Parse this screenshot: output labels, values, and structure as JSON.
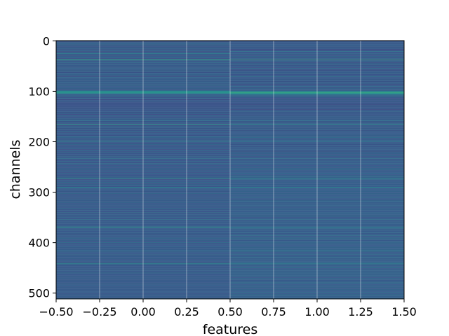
{
  "chart_data": {
    "type": "heatmap",
    "title": "",
    "xlabel": "features",
    "ylabel": "channels",
    "xlim": [
      -0.5,
      1.5
    ],
    "ylim": [
      511.5,
      -0.5
    ],
    "x_tick_labels": [
      "−0.50",
      "−0.25",
      "0.00",
      "0.25",
      "0.50",
      "0.75",
      "1.00",
      "1.25",
      "1.50"
    ],
    "x_tick_values": [
      -0.5,
      -0.25,
      0,
      0.25,
      0.5,
      0.75,
      1.0,
      1.25,
      1.5
    ],
    "y_tick_labels": [
      "0",
      "100",
      "200",
      "300",
      "400",
      "500"
    ],
    "y_tick_values": [
      0,
      100,
      200,
      300,
      400,
      500
    ],
    "columns": 2,
    "rows": 512,
    "grid": true,
    "colormap": "viridis",
    "value_range": [
      0,
      1
    ],
    "row_values_col0": [
      0.22,
      0.35,
      0.18,
      0.3,
      0.28,
      0.41,
      0.25,
      0.33,
      0.2,
      0.38,
      0.27,
      0.31,
      0.19,
      0.36,
      0.24,
      0.29,
      0.34,
      0.22,
      0.4,
      0.26,
      0.31,
      0.21,
      0.37,
      0.28,
      0.23,
      0.42,
      0.3,
      0.25,
      0.33,
      0.2,
      0.35,
      0.27,
      0.24,
      0.39,
      0.29,
      0.22,
      0.36,
      0.31,
      0.58,
      0.3,
      0.26,
      0.34,
      0.21,
      0.38,
      0.28,
      0.25,
      0.4,
      0.23,
      0.32,
      0.27,
      0.36,
      0.2,
      0.33,
      0.29,
      0.24,
      0.41,
      0.26,
      0.31,
      0.22,
      0.37,
      0.28,
      0.34,
      0.19,
      0.3,
      0.25,
      0.39,
      0.27,
      0.32,
      0.23,
      0.36,
      0.29,
      0.21,
      0.35,
      0.26,
      0.4,
      0.24,
      0.31,
      0.28,
      0.33,
      0.22,
      0.37,
      0.25,
      0.3,
      0.27,
      0.42,
      0.23,
      0.34,
      0.29,
      0.2,
      0.38,
      0.26,
      0.32,
      0.24,
      0.36,
      0.28,
      0.31,
      0.22,
      0.35,
      0.27,
      0.39,
      0.45,
      0.5,
      0.47,
      0.52,
      0.44,
      0.41,
      0.3,
      0.25,
      0.33,
      0.28,
      0.36,
      0.22,
      0.3,
      0.26,
      0.34,
      0.24,
      0.29,
      0.21,
      0.27,
      0.32,
      0.25,
      0.28,
      0.23,
      0.31,
      0.26,
      0.2,
      0.29,
      0.24,
      0.27,
      0.22,
      0.3,
      0.25,
      0.28,
      0.19,
      0.33,
      0.26,
      0.29,
      0.23,
      0.31,
      0.24,
      0.27,
      0.35,
      0.22,
      0.3,
      0.26,
      0.33,
      0.21,
      0.29,
      0.25,
      0.37,
      0.28,
      0.23,
      0.31,
      0.26,
      0.34,
      0.22,
      0.3,
      0.48,
      0.27,
      0.32,
      0.24,
      0.29,
      0.26,
      0.35,
      0.23,
      0.55,
      0.28,
      0.31,
      0.22,
      0.34,
      0.27,
      0.3,
      0.25,
      0.38,
      0.21,
      0.29,
      0.26,
      0.33,
      0.24,
      0.31,
      0.28,
      0.36,
      0.22,
      0.3,
      0.27,
      0.35,
      0.25,
      0.29,
      0.23,
      0.32,
      0.28,
      0.4,
      0.26,
      0.3,
      0.22,
      0.34,
      0.27,
      0.31,
      0.24,
      0.52,
      0.29,
      0.25,
      0.33,
      0.21,
      0.3,
      0.28,
      0.36,
      0.23,
      0.31,
      0.26,
      0.29,
      0.24,
      0.35,
      0.27,
      0.32,
      0.22,
      0.3,
      0.25,
      0.38,
      0.28,
      0.23,
      0.34,
      0.26,
      0.31,
      0.24,
      0.29,
      0.27,
      0.36,
      0.22,
      0.33,
      0.25,
      0.3,
      0.28,
      0.41,
      0.23,
      0.32,
      0.26,
      0.29,
      0.24,
      0.35,
      0.27,
      0.31,
      0.22,
      0.34,
      0.29,
      0.25,
      0.37,
      0.23,
      0.3,
      0.27,
      0.33,
      0.24,
      0.28,
      0.31,
      0.26,
      0.39,
      0.22,
      0.3,
      0.25,
      0.34,
      0.28,
      0.23,
      0.32,
      0.26,
      0.36,
      0.24,
      0.29,
      0.27,
      0.31,
      0.22,
      0.35,
      0.28,
      0.54,
      0.25,
      0.3,
      0.23,
      0.33,
      0.27,
      0.29,
      0.24,
      0.38,
      0.26,
      0.31,
      0.22,
      0.34,
      0.28,
      0.3,
      0.25,
      0.36,
      0.23,
      0.32,
      0.5,
      0.27,
      0.29,
      0.24,
      0.35,
      0.26,
      0.31,
      0.22,
      0.33,
      0.28,
      0.3,
      0.25,
      0.37,
      0.23,
      0.32,
      0.27,
      0.29,
      0.24,
      0.34,
      0.26,
      0.31,
      0.22,
      0.36,
      0.28,
      0.3,
      0.25,
      0.33,
      0.23,
      0.39,
      0.27,
      0.31,
      0.24,
      0.35,
      0.29,
      0.26,
      0.32,
      0.22,
      0.34,
      0.28,
      0.3,
      0.25,
      0.37,
      0.23,
      0.31,
      0.27,
      0.33,
      0.24,
      0.29,
      0.26,
      0.36,
      0.22,
      0.3,
      0.28,
      0.32,
      0.25,
      0.35,
      0.23,
      0.31,
      0.27,
      0.34,
      0.24,
      0.29,
      0.26,
      0.38,
      0.22,
      0.33,
      0.28,
      0.3,
      0.25,
      0.36,
      0.23,
      0.32,
      0.27,
      0.29,
      0.24,
      0.35,
      0.26,
      0.31,
      0.53,
      0.34,
      0.28,
      0.3,
      0.25,
      0.37,
      0.23,
      0.32,
      0.27,
      0.29,
      0.24,
      0.36,
      0.26,
      0.31,
      0.22,
      0.33,
      0.28,
      0.3,
      0.25,
      0.35,
      0.23,
      0.32,
      0.27,
      0.39,
      0.24,
      0.31,
      0.26,
      0.34,
      0.22,
      0.3,
      0.28,
      0.36,
      0.25,
      0.33,
      0.23,
      0.31,
      0.27,
      0.29,
      0.24,
      0.37,
      0.26,
      0.32,
      0.22,
      0.35,
      0.28,
      0.3,
      0.25,
      0.48,
      0.23,
      0.31,
      0.27,
      0.34,
      0.24,
      0.29,
      0.26,
      0.36,
      0.22,
      0.33,
      0.28,
      0.3,
      0.25,
      0.38,
      0.23,
      0.32,
      0.27,
      0.29,
      0.24,
      0.35,
      0.26,
      0.31,
      0.22,
      0.34,
      0.28,
      0.51,
      0.25,
      0.37,
      0.23,
      0.3,
      0.27,
      0.33,
      0.24,
      0.29,
      0.26,
      0.36,
      0.22,
      0.31,
      0.28,
      0.34,
      0.25,
      0.3,
      0.23,
      0.39,
      0.27,
      0.32,
      0.24,
      0.29,
      0.26,
      0.35,
      0.22,
      0.33,
      0.28,
      0.3,
      0.25,
      0.37,
      0.23,
      0.31,
      0.27,
      0.34,
      0.24,
      0.29,
      0.26,
      0.36,
      0.22,
      0.32,
      0.28,
      0.3,
      0.25,
      0.38,
      0.23,
      0.33,
      0.27,
      0.29,
      0.24,
      0.35,
      0.26,
      0.31,
      0.22,
      0.34,
      0.28,
      0.3,
      0.25,
      0.36,
      0.23,
      0.32,
      0.27,
      0.29,
      0.24,
      0.37,
      0.26,
      0.31,
      0.22,
      0.33,
      0.28
    ],
    "row_values_col1": [
      0.2,
      0.32,
      0.24,
      0.27,
      0.35,
      0.22,
      0.3,
      0.26,
      0.38,
      0.23,
      0.29,
      0.33,
      0.21,
      0.28,
      0.36,
      0.25,
      0.31,
      0.19,
      0.34,
      0.27,
      0.22,
      0.39,
      0.26,
      0.3,
      0.24,
      0.32,
      0.28,
      0.35,
      0.21,
      0.29,
      0.25,
      0.37,
      0.23,
      0.31,
      0.27,
      0.34,
      0.2,
      0.3,
      0.56,
      0.28,
      0.33,
      0.24,
      0.36,
      0.22,
      0.29,
      0.31,
      0.26,
      0.38,
      0.21,
      0.3,
      0.25,
      0.34,
      0.28,
      0.23,
      0.36,
      0.27,
      0.32,
      0.24,
      0.29,
      0.2,
      0.35,
      0.26,
      0.31,
      0.28,
      0.37,
      0.22,
      0.3,
      0.25,
      0.33,
      0.27,
      0.21,
      0.39,
      0.29,
      0.24,
      0.32,
      0.26,
      0.35,
      0.23,
      0.3,
      0.28,
      0.34,
      0.22,
      0.31,
      0.25,
      0.36,
      0.27,
      0.2,
      0.33,
      0.29,
      0.24,
      0.38,
      0.26,
      0.3,
      0.23,
      0.35,
      0.28,
      0.32,
      0.25,
      0.29,
      0.34,
      0.4,
      0.48,
      0.55,
      0.58,
      0.52,
      0.46,
      0.38,
      0.34,
      0.3,
      0.36,
      0.32,
      0.28,
      0.27,
      0.31,
      0.24,
      0.29,
      0.22,
      0.33,
      0.26,
      0.3,
      0.21,
      0.34,
      0.25,
      0.28,
      0.23,
      0.32,
      0.27,
      0.19,
      0.3,
      0.26,
      0.35,
      0.22,
      0.29,
      0.24,
      0.31,
      0.27,
      0.2,
      0.33,
      0.25,
      0.28,
      0.36,
      0.23,
      0.3,
      0.26,
      0.32,
      0.24,
      0.29,
      0.21,
      0.34,
      0.27,
      0.3,
      0.25,
      0.38,
      0.22,
      0.31,
      0.28,
      0.24,
      0.46,
      0.33,
      0.26,
      0.29,
      0.23,
      0.35,
      0.27,
      0.3,
      0.52,
      0.25,
      0.32,
      0.28,
      0.24,
      0.36,
      0.26,
      0.31,
      0.22,
      0.34,
      0.29,
      0.27,
      0.35,
      0.23,
      0.3,
      0.26,
      0.33,
      0.28,
      0.25,
      0.37,
      0.24,
      0.31,
      0.27,
      0.34,
      0.22,
      0.3,
      0.44,
      0.28,
      0.25,
      0.36,
      0.23,
      0.31,
      0.27,
      0.33,
      0.5,
      0.26,
      0.3,
      0.24,
      0.35,
      0.28,
      0.22,
      0.32,
      0.29,
      0.26,
      0.34,
      0.23,
      0.3,
      0.27,
      0.36,
      0.25,
      0.31,
      0.28,
      0.24,
      0.33,
      0.21,
      0.35,
      0.29,
      0.26,
      0.32,
      0.3,
      0.24,
      0.37,
      0.27,
      0.31,
      0.23,
      0.34,
      0.28,
      0.25,
      0.38,
      0.29,
      0.26,
      0.32,
      0.24,
      0.35,
      0.3,
      0.28,
      0.33,
      0.25,
      0.31,
      0.36,
      0.27,
      0.3,
      0.24,
      0.34,
      0.29,
      0.26,
      0.32,
      0.23,
      0.37,
      0.28,
      0.31,
      0.35,
      0.27,
      0.3,
      0.24,
      0.33,
      0.29,
      0.26,
      0.38,
      0.31,
      0.25,
      0.34,
      0.28,
      0.3,
      0.36,
      0.27,
      0.32,
      0.52,
      0.29,
      0.26,
      0.35,
      0.3,
      0.24,
      0.33,
      0.28,
      0.31,
      0.27,
      0.36,
      0.25,
      0.3,
      0.29,
      0.34,
      0.26,
      0.32,
      0.28,
      0.35,
      0.48,
      0.3,
      0.27,
      0.33,
      0.25,
      0.31,
      0.29,
      0.37,
      0.26,
      0.32,
      0.24,
      0.34,
      0.3,
      0.28,
      0.35,
      0.26,
      0.31,
      0.29,
      0.33,
      0.24,
      0.36,
      0.3,
      0.27,
      0.32,
      0.25,
      0.34,
      0.29,
      0.31,
      0.38,
      0.26,
      0.3,
      0.28,
      0.35,
      0.24,
      0.32,
      0.29,
      0.36,
      0.27,
      0.31,
      0.25,
      0.33,
      0.3,
      0.28,
      0.37,
      0.26,
      0.31,
      0.29,
      0.34,
      0.25,
      0.32,
      0.27,
      0.35,
      0.3,
      0.28,
      0.33,
      0.26,
      0.36,
      0.29,
      0.31,
      0.24,
      0.34,
      0.3,
      0.27,
      0.37,
      0.25,
      0.32,
      0.29,
      0.31,
      0.26,
      0.35,
      0.28,
      0.3,
      0.33,
      0.27,
      0.36,
      0.24,
      0.31,
      0.29,
      0.5,
      0.32,
      0.27,
      0.35,
      0.3,
      0.26,
      0.34,
      0.28,
      0.31,
      0.25,
      0.37,
      0.29,
      0.32,
      0.27,
      0.33,
      0.3,
      0.26,
      0.36,
      0.28,
      0.31,
      0.25,
      0.34,
      0.29,
      0.38,
      0.27,
      0.32,
      0.3,
      0.26,
      0.35,
      0.28,
      0.31,
      0.33,
      0.27,
      0.36,
      0.29,
      0.3,
      0.25,
      0.34,
      0.28,
      0.32,
      0.26,
      0.37,
      0.3,
      0.31,
      0.27,
      0.35,
      0.29,
      0.46,
      0.28,
      0.32,
      0.26,
      0.33,
      0.3,
      0.27,
      0.36,
      0.29,
      0.31,
      0.25,
      0.34,
      0.28,
      0.32,
      0.38,
      0.27,
      0.3,
      0.29,
      0.35,
      0.26,
      0.31,
      0.28,
      0.33,
      0.3,
      0.36,
      0.27,
      0.49,
      0.29,
      0.32,
      0.25,
      0.34,
      0.28,
      0.31,
      0.3,
      0.37,
      0.26,
      0.33,
      0.29,
      0.28,
      0.35,
      0.27,
      0.32,
      0.3,
      0.36,
      0.26,
      0.31,
      0.38,
      0.29,
      0.28,
      0.33,
      0.27,
      0.35,
      0.3,
      0.26,
      0.32,
      0.29,
      0.36,
      0.28,
      0.31,
      0.25,
      0.34,
      0.3,
      0.27,
      0.33,
      0.37,
      0.29,
      0.31,
      0.26,
      0.35,
      0.28,
      0.3,
      0.32,
      0.27,
      0.36,
      0.29,
      0.25,
      0.34,
      0.31,
      0.28,
      0.3,
      0.33,
      0.27,
      0.36,
      0.29,
      0.32,
      0.26,
      0.35,
      0.3,
      0.28,
      0.31,
      0.37,
      0.27,
      0.33,
      0.29,
      0.3,
      0.34
    ]
  }
}
